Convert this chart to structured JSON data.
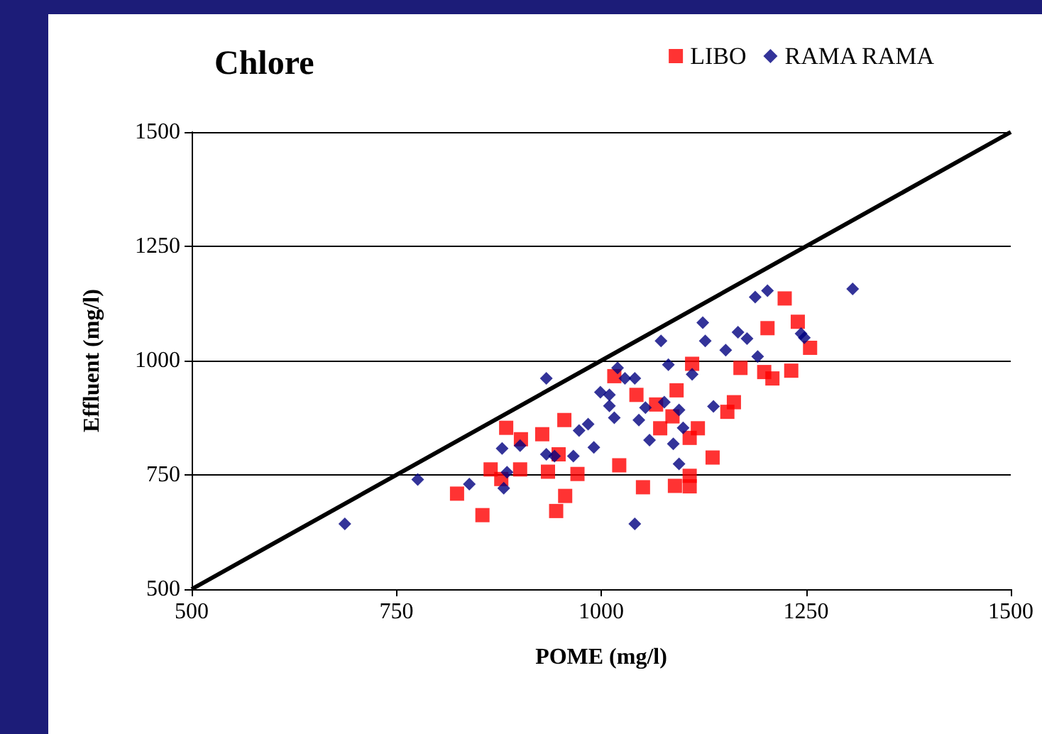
{
  "chart_data": {
    "type": "scatter",
    "title": "Chlore",
    "xlabel": "POME (mg/l)",
    "ylabel": "Effluent (mg/l)",
    "xlim": [
      500,
      1500
    ],
    "xticks": [
      500,
      750,
      1000,
      1250,
      1500
    ],
    "ylim": [
      500,
      1500
    ],
    "yticks": [
      500,
      750,
      1000,
      1250,
      1500
    ],
    "grid": "y",
    "legend": "top right",
    "series": [
      {
        "name": "LIBO",
        "color": "#ff0000",
        "marker": "square",
        "x": [
          1016,
          884,
          902,
          928,
          955,
          948,
          865,
          878,
          901,
          935,
          971,
          824,
          956,
          945,
          855,
          1022,
          1224,
          1240,
          1203,
          1255,
          1111,
          1170,
          1199,
          1209,
          1232,
          1043,
          1092,
          1067,
          1079,
          1087,
          1072,
          1108,
          1118,
          1162,
          1154,
          1136,
          1051,
          1090,
          1108,
          1108
        ],
        "values": [
          966,
          853,
          828,
          839,
          870,
          795,
          762,
          741,
          762,
          757,
          752,
          709,
          704,
          671,
          662,
          771,
          1136,
          1085,
          1071,
          1028,
          993,
          984,
          975,
          961,
          978,
          925,
          935,
          904,
          null,
          878,
          852,
          831,
          852,
          909,
          888,
          788,
          723,
          726,
          748,
          725
        ]
      },
      {
        "name": "RAMA RAMA",
        "color": "#000080",
        "marker": "diamond",
        "x": [
          687,
          776,
          839,
          881,
          885,
          879,
          901,
          933,
          933,
          943,
          966,
          991,
          973,
          984,
          999,
          1010,
          1010,
          1016,
          1020,
          1307,
          1203,
          1188,
          1124,
          1073,
          1127,
          1167,
          1178,
          1244,
          1152,
          1191,
          1082,
          1029,
          1041,
          1111,
          1054,
          1046,
          1077,
          1095,
          1100,
          1137,
          1059,
          1088,
          1095,
          1041,
          1248
        ],
        "values": [
          643,
          740,
          730,
          721,
          756,
          808,
          814,
          961,
          795,
          791,
          791,
          810,
          847,
          861,
          931,
          925,
          901,
          875,
          984,
          1157,
          1153,
          1139,
          1083,
          1043,
          1043,
          1062,
          1048,
          1059,
          1023,
          1009,
          991,
          961,
          961,
          970,
          897,
          870,
          909,
          892,
          853,
          900,
          826,
          818,
          774,
          643,
          1050
        ]
      },
      {
        "type": "line",
        "color": "#000000",
        "marker": "none",
        "x": [
          500,
          1500
        ],
        "values": [
          500,
          1500
        ]
      }
    ]
  }
}
